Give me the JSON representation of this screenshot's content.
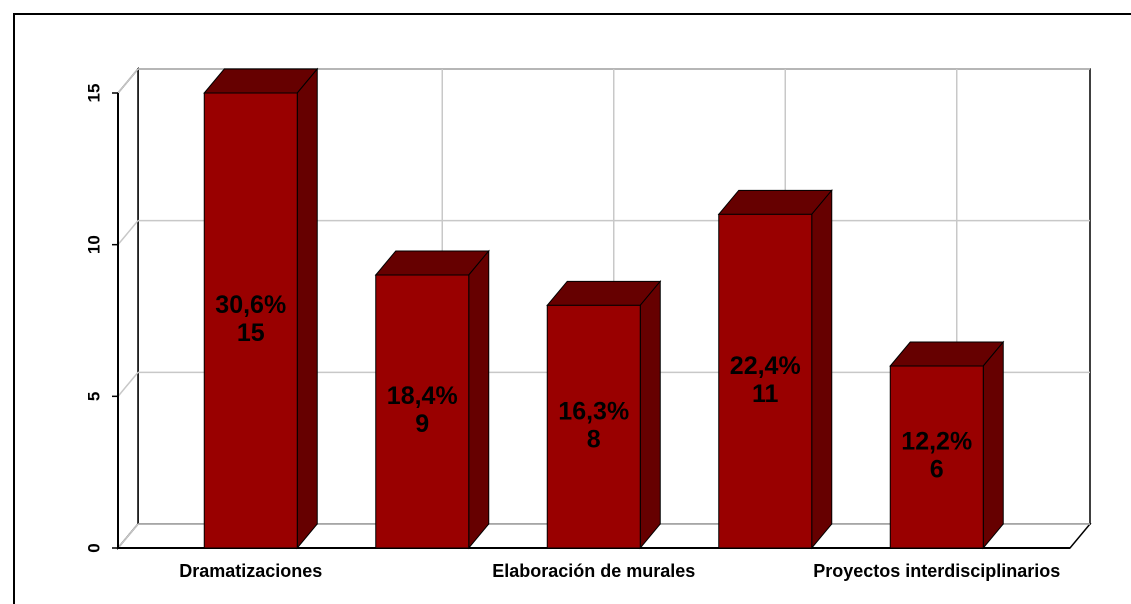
{
  "chart_data": {
    "type": "bar3d",
    "categories": [
      "Dramatizaciones",
      null,
      "Elaboración de murales",
      null,
      "Proyectos interdisciplinarios"
    ],
    "values": [
      15,
      9,
      8,
      11,
      6
    ],
    "percent": {
      "values": [
        30.6,
        18.4,
        16.3,
        22.4,
        12.2
      ],
      "value_labels": [
        "30,6%",
        "18,4%",
        "16,3%",
        "22,4%",
        "12,2%"
      ]
    },
    "color": "#990000",
    "shade_color": "#660000",
    "ylim": [
      0,
      15
    ],
    "yticks": [
      0,
      5,
      10,
      15
    ],
    "grid": true
  }
}
